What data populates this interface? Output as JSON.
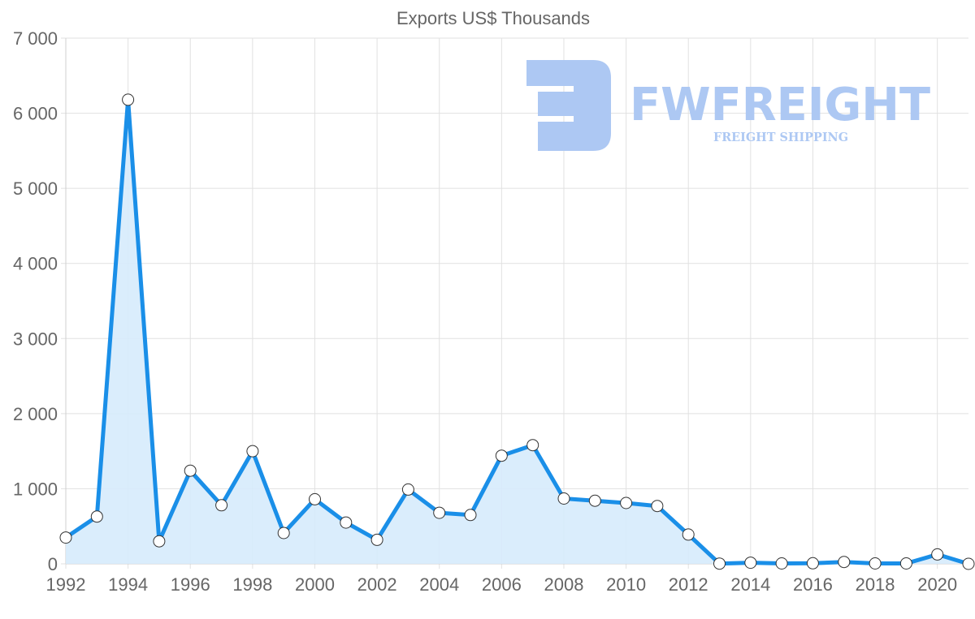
{
  "chart_data": {
    "type": "line",
    "title": "Exports US$ Thousands",
    "xlabel": "",
    "ylabel": "",
    "x": [
      1992,
      1993,
      1994,
      1995,
      1996,
      1997,
      1998,
      1999,
      2000,
      2001,
      2002,
      2003,
      2004,
      2005,
      2006,
      2007,
      2008,
      2009,
      2010,
      2011,
      2012,
      2013,
      2014,
      2015,
      2016,
      2017,
      2018,
      2019,
      2020,
      2021
    ],
    "series": [
      {
        "name": "Exports US$ Thousands",
        "values": [
          350,
          630,
          6180,
          300,
          1240,
          780,
          1500,
          410,
          860,
          550,
          320,
          990,
          680,
          650,
          1440,
          1580,
          870,
          840,
          810,
          770,
          390,
          3,
          15,
          5,
          8,
          25,
          5,
          5,
          125,
          0
        ],
        "fill": true
      }
    ],
    "ylim": [
      0,
      7000
    ],
    "y_ticks": [
      0,
      1000,
      2000,
      3000,
      4000,
      5000,
      6000,
      7000
    ],
    "y_tick_labels": [
      "0",
      "1 000",
      "2 000",
      "3 000",
      "4 000",
      "5 000",
      "6 000",
      "7 000"
    ],
    "x_tick_labels": [
      "1992",
      "1994",
      "1996",
      "1998",
      "2000",
      "2002",
      "2004",
      "2006",
      "2008",
      "2010",
      "2012",
      "2014",
      "2016",
      "2018",
      "2020"
    ],
    "grid": true,
    "legend": "none"
  },
  "colors": {
    "line": "#1a8fe8",
    "fill": "#d6ebfc",
    "point_fill": "#ffffff",
    "point_stroke": "#333333",
    "grid": "#e1e1e1",
    "text": "#666666",
    "watermark": "#adc8f3"
  },
  "watermark": {
    "brand": "FWFREIGHT",
    "tagline": "FREIGHT SHIPPING"
  }
}
